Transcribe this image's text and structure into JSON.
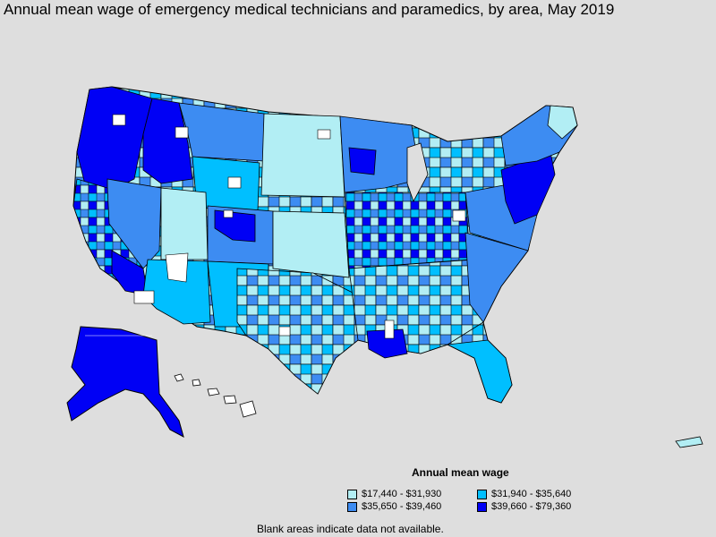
{
  "title": "Annual mean wage of emergency medical technicians and paramedics, by area, May 2019",
  "legend": {
    "title": "Annual mean wage",
    "items": [
      {
        "label": "$17,440 - $31,930",
        "color": "#b2eef4"
      },
      {
        "label": "$31,940 - $35,640",
        "color": "#00bfff"
      },
      {
        "label": "$35,650 - $39,460",
        "color": "#3d8cf2"
      },
      {
        "label": "$39,660 - $79,360",
        "color": "#0000f5"
      }
    ]
  },
  "footnote": "Blank areas indicate data not available.",
  "colors": {
    "background": "#dedede",
    "blank": "#ffffff",
    "border": "#000000"
  }
}
